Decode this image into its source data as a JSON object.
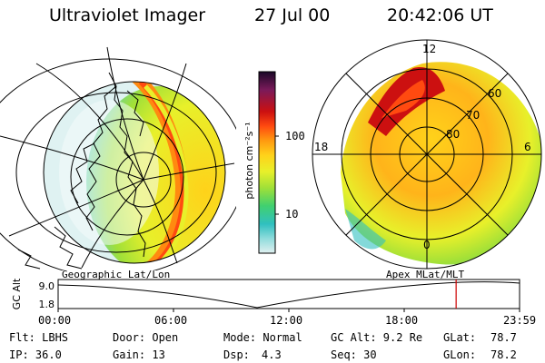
{
  "header": {
    "title": "Ultraviolet Imager",
    "date": "27 Jul 00",
    "time": "20:42:06 UT"
  },
  "left_map": {
    "label": "Geographic Lat/Lon"
  },
  "right_map": {
    "label": "Apex MLat/MLT",
    "mlt_labels": {
      "top": "12",
      "left": "18",
      "right": "6",
      "bottom": "0"
    },
    "lat_labels": [
      "60",
      "70",
      "80"
    ]
  },
  "colorbar": {
    "unit_label": "photon cm⁻²s⁻¹",
    "tick_labels": [
      "100",
      "10"
    ],
    "colors": [
      "#1a0828",
      "#7a1a5a",
      "#cc1010",
      "#ff4a10",
      "#ff9a10",
      "#ffd21a",
      "#e8f02a",
      "#a0e038",
      "#40d070",
      "#30c0c0",
      "#90dcdc",
      "#e0f0f0"
    ]
  },
  "altitude_strip": {
    "axis_label": "GC Alt",
    "y_ticks": [
      "9.0",
      "1.8"
    ],
    "x_ticks": [
      "00:00",
      "06:00",
      "12:00",
      "18:00",
      "23:59"
    ],
    "marker_time_hours": 20.7,
    "marker_color": "#cc0000"
  },
  "footer": {
    "row1": {
      "flt": "Flt: LBHS",
      "door": "Door: Open",
      "mode": "Mode: Normal",
      "gcalt": "GC Alt: 9.2 Re",
      "glat_label": "GLat:",
      "glat_value": "78.7"
    },
    "row2": {
      "ip": "IP: 36.0",
      "gain": "Gain: 13",
      "dsp_label": "Dsp:",
      "dsp_value": "4.3",
      "seq": "Seq: 30",
      "glon_label": "GLon:",
      "glon_value": "78.2"
    }
  }
}
